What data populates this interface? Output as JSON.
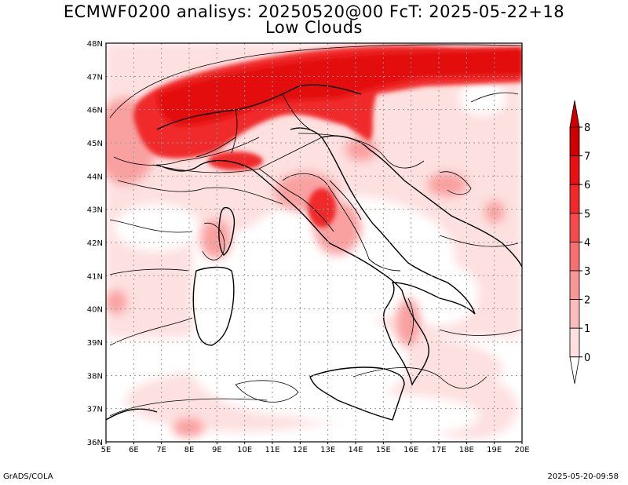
{
  "title": {
    "line1": "ECMWF0200 analisys: 20250520@00 FcT: 2025-05-22+18",
    "line2": "Low Clouds"
  },
  "map": {
    "lon_labels": [
      "5E",
      "6E",
      "7E",
      "8E",
      "9E",
      "10E",
      "11E",
      "12E",
      "13E",
      "14E",
      "15E",
      "16E",
      "17E",
      "18E",
      "19E",
      "20E"
    ],
    "lat_labels": [
      "48N",
      "47N",
      "46N",
      "45N",
      "44N",
      "43N",
      "42N",
      "41N",
      "40N",
      "39N",
      "38N",
      "37N",
      "36N"
    ],
    "lon_range": [
      5,
      20
    ],
    "lat_range": [
      36,
      48
    ],
    "grid": "dotted",
    "field": "low cloud cover (oktas)"
  },
  "colorbar": {
    "labels": [
      "8",
      "7",
      "6",
      "5",
      "4",
      "3",
      "2",
      "1",
      "0"
    ],
    "levels": [
      0,
      1,
      2,
      3,
      4,
      5,
      6,
      7,
      8
    ],
    "colors": [
      "#ffffff",
      "#fde0e0",
      "#fbbcbc",
      "#f99696",
      "#f77070",
      "#f54b4b",
      "#f32828",
      "#e81010",
      "#d00000"
    ]
  },
  "footer": {
    "left": "GrADS/COLA",
    "right": "2025-05-20-09:58"
  }
}
